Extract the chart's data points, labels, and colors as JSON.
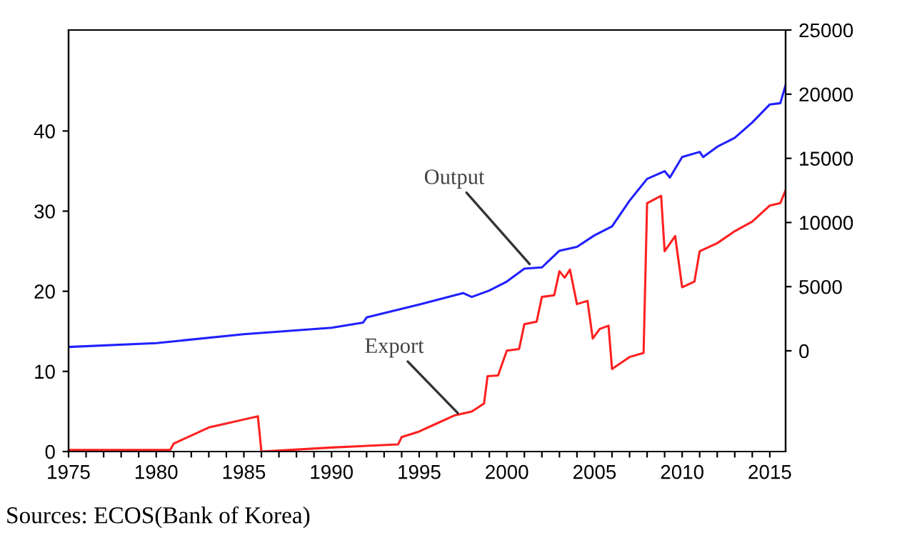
{
  "chart_data": {
    "type": "line",
    "xlim": [
      1975,
      2015.9
    ],
    "xticks": [
      1975,
      {
        "value": 1976,
        "label": null
      },
      {
        "value": 1977,
        "label": null
      },
      {
        "value": 1978,
        "label": null
      },
      {
        "value": 1979,
        "label": null
      },
      1980,
      {
        "value": 1981,
        "label": null
      },
      {
        "value": 1982,
        "label": null
      },
      {
        "value": 1983,
        "label": null
      },
      {
        "value": 1984,
        "label": null
      },
      1985,
      {
        "value": 1986,
        "label": null
      },
      {
        "value": 1987,
        "label": null
      },
      {
        "value": 1988,
        "label": null
      },
      {
        "value": 1989,
        "label": null
      },
      1990,
      {
        "value": 1991,
        "label": null
      },
      {
        "value": 1992,
        "label": null
      },
      {
        "value": 1993,
        "label": null
      },
      {
        "value": 1994,
        "label": null
      },
      1995,
      {
        "value": 1996,
        "label": null
      },
      {
        "value": 1997,
        "label": null
      },
      {
        "value": 1998,
        "label": null
      },
      {
        "value": 1999,
        "label": null
      },
      2000,
      {
        "value": 2001,
        "label": null
      },
      {
        "value": 2002,
        "label": null
      },
      {
        "value": 2003,
        "label": null
      },
      {
        "value": 2004,
        "label": null
      },
      2005,
      {
        "value": 2006,
        "label": null
      },
      {
        "value": 2007,
        "label": null
      },
      {
        "value": 2008,
        "label": null
      },
      {
        "value": 2009,
        "label": null
      },
      2010,
      {
        "value": 2011,
        "label": null
      },
      {
        "value": 2012,
        "label": null
      },
      {
        "value": 2013,
        "label": null
      },
      {
        "value": 2014,
        "label": null
      },
      2015
    ],
    "ylim": [
      0,
      52.6
    ],
    "yticks": [
      0,
      10,
      20,
      30,
      40
    ],
    "y2lim": [
      -7850,
      25000
    ],
    "y2ticks": [
      0,
      5000,
      10000,
      15000,
      20000,
      25000
    ],
    "grid": false,
    "marker": "none",
    "line_style": "solid",
    "series": [
      {
        "color": "#ff2020",
        "x": [
          1975,
          1980.8,
          1981,
          1982,
          1983,
          1984,
          1985,
          1985.8,
          1986,
          1990,
          1993.8,
          1994,
          1995,
          1996,
          1997,
          1998,
          1998.7,
          1998.9,
          1999.5,
          2000,
          2000.7,
          2001,
          2001.7,
          2002,
          2002.7,
          2003,
          2003.3,
          2003.6,
          2004,
          2004.6,
          2004.9,
          2005.3,
          2005.8,
          2006,
          2007,
          2007.8,
          2008,
          2008.8,
          2009,
          2009.6,
          2010,
          2010.7,
          2011,
          2012,
          2013,
          2014,
          2015,
          2015.6,
          2015.9
        ],
        "values": [
          0.2,
          0.2,
          1.0,
          2.0,
          3.0,
          3.5,
          4.0,
          4.4,
          0.0,
          0.5,
          0.9,
          1.8,
          2.5,
          3.5,
          4.5,
          5.0,
          6.0,
          9.4,
          9.5,
          12.6,
          12.8,
          15.9,
          16.2,
          19.3,
          19.5,
          22.5,
          21.7,
          22.7,
          18.4,
          18.8,
          14.1,
          15.3,
          15.7,
          10.3,
          11.8,
          12.3,
          31.0,
          31.9,
          25.0,
          26.9,
          20.5,
          21.2,
          25.0,
          26.0,
          27.5,
          28.7,
          30.7,
          31.0,
          32.6
        ]
      },
      {
        "color": "#2020ff",
        "axis": "y2",
        "x": [
          1975,
          1980,
          1985,
          1990,
          1991.8,
          1992,
          1995,
          1997.5,
          1998,
          1999,
          2000,
          2001,
          2002,
          2003,
          2004,
          2005,
          2006,
          2007,
          2008,
          2009,
          2009.3,
          2010,
          2011,
          2011.2,
          2012,
          2013,
          2014,
          2015,
          2015.6,
          2015.9
        ],
        "values": [
          300,
          600,
          1300,
          1800,
          2200,
          2600,
          3600,
          4500,
          4200,
          4700,
          5400,
          6400,
          6500,
          7800,
          8100,
          9000,
          9700,
          11700,
          13400,
          14000,
          13500,
          15100,
          15500,
          15100,
          15900,
          16600,
          17800,
          19200,
          19300,
          20700
        ]
      }
    ],
    "annotations": [
      {
        "text": "Output",
        "x": 2001.3,
        "y": 23.4
      },
      {
        "text": "Export",
        "x": 1997.2,
        "y": 4.8
      },
      "Sources: ECOS(Bank of Korea)"
    ]
  }
}
